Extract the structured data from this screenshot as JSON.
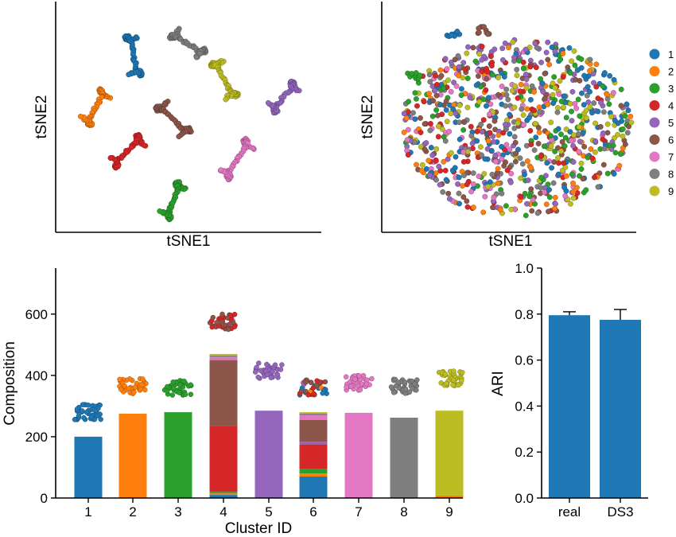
{
  "colors": [
    "#1f77b4",
    "#ff7f0e",
    "#2ca02c",
    "#d62728",
    "#9467bd",
    "#8c564b",
    "#e377c2",
    "#7f7f7f",
    "#bcbd22"
  ],
  "chart_data": [
    {
      "type": "scatter",
      "panel": "tsne-separated",
      "xlabel": "tSNE1",
      "ylabel": "tSNE2",
      "note": "nine well-separated S-shaped clusters, one per ID 1-9"
    },
    {
      "type": "scatter",
      "panel": "tsne-mixed",
      "xlabel": "tSNE1",
      "ylabel": "tSNE2",
      "legend": [
        "1",
        "2",
        "3",
        "4",
        "5",
        "6",
        "7",
        "8",
        "9"
      ],
      "legend_position": "right"
    },
    {
      "type": "bar",
      "stacked": true,
      "categories": [
        "1",
        "2",
        "3",
        "4",
        "5",
        "6",
        "7",
        "8",
        "9"
      ],
      "xlabel": "Cluster ID",
      "ylabel": "Composition",
      "ylim": [
        0,
        750
      ],
      "yticks": [
        0,
        200,
        400,
        600
      ],
      "stacks": [
        [
          {
            "c": 1,
            "v": 200
          }
        ],
        [
          {
            "c": 2,
            "v": 275
          }
        ],
        [
          {
            "c": 3,
            "v": 280
          }
        ],
        [
          {
            "c": 1,
            "v": 10
          },
          {
            "c": 2,
            "v": 5
          },
          {
            "c": 3,
            "v": 5
          },
          {
            "c": 4,
            "v": 215
          },
          {
            "c": 6,
            "v": 215
          },
          {
            "c": 7,
            "v": 10
          },
          {
            "c": 8,
            "v": 5
          },
          {
            "c": 9,
            "v": 5
          }
        ],
        [
          {
            "c": 5,
            "v": 285
          }
        ],
        [
          {
            "c": 1,
            "v": 70
          },
          {
            "c": 2,
            "v": 10
          },
          {
            "c": 3,
            "v": 15
          },
          {
            "c": 4,
            "v": 80
          },
          {
            "c": 5,
            "v": 8
          },
          {
            "c": 6,
            "v": 72
          },
          {
            "c": 7,
            "v": 15
          },
          {
            "c": 8,
            "v": 5
          },
          {
            "c": 9,
            "v": 5
          }
        ],
        [
          {
            "c": 7,
            "v": 278
          }
        ],
        [
          {
            "c": 8,
            "v": 262
          }
        ],
        [
          {
            "c": 2,
            "v": 8
          },
          {
            "c": 9,
            "v": 277
          }
        ]
      ],
      "cloud_center_y": [
        280,
        365,
        360,
        575,
        415,
        360,
        375,
        365,
        390
      ]
    },
    {
      "type": "bar",
      "categories": [
        "real",
        "DS3"
      ],
      "values": [
        0.795,
        0.775
      ],
      "errors": [
        0.03,
        0.06
      ],
      "ylabel": "ARI",
      "ylim": [
        0.0,
        1.0
      ],
      "yticks": [
        "0.0",
        "0.2",
        "0.4",
        "0.6",
        "0.8",
        "1.0"
      ],
      "color": "#1f77b4"
    }
  ]
}
